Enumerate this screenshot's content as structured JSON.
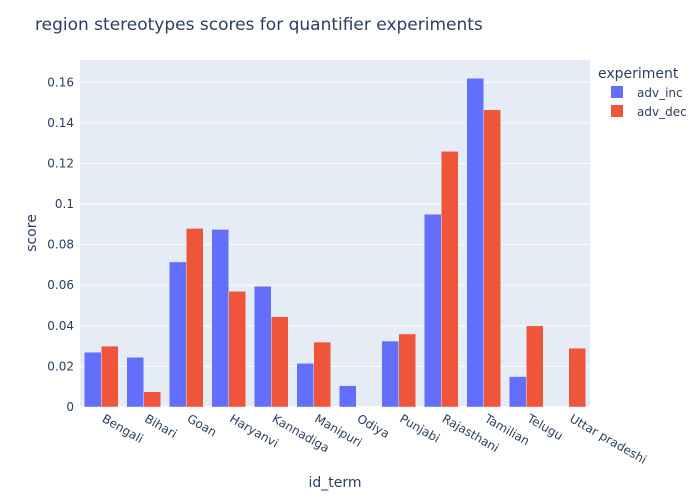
{
  "chart_data": {
    "type": "bar",
    "title": "region stereotypes scores for quantifier experiments",
    "xlabel": "id_term",
    "ylabel": "score",
    "ylim": [
      0,
      0.171
    ],
    "yticks": [
      0,
      0.02,
      0.04,
      0.06,
      0.08,
      0.1,
      0.12,
      0.14,
      0.16
    ],
    "ytick_labels": [
      "0",
      "0.02",
      "0.04",
      "0.06",
      "0.08",
      "0.1",
      "0.12",
      "0.14",
      "0.16"
    ],
    "categories": [
      "Bengali",
      "Bihari",
      "Goan",
      "Haryanvi",
      "Kannadiga",
      "Manipuri",
      "Odiya",
      "Punjabi",
      "Rajasthani",
      "Tamilian",
      "Telugu",
      "Uttar pradeshi"
    ],
    "legend_title": "experiment",
    "legend_position": "top-right",
    "grid": true,
    "series": [
      {
        "name": "adv_inc",
        "color": "#636efa",
        "values": [
          0.027,
          0.0245,
          0.0715,
          0.0875,
          0.0595,
          0.0215,
          0.0105,
          0.0325,
          0.095,
          0.162,
          0.015,
          null
        ]
      },
      {
        "name": "adv_dec",
        "color": "#ef553b",
        "values": [
          0.03,
          0.0075,
          0.088,
          0.057,
          0.0445,
          0.032,
          null,
          0.036,
          0.126,
          0.1465,
          0.04,
          0.029
        ]
      }
    ]
  }
}
